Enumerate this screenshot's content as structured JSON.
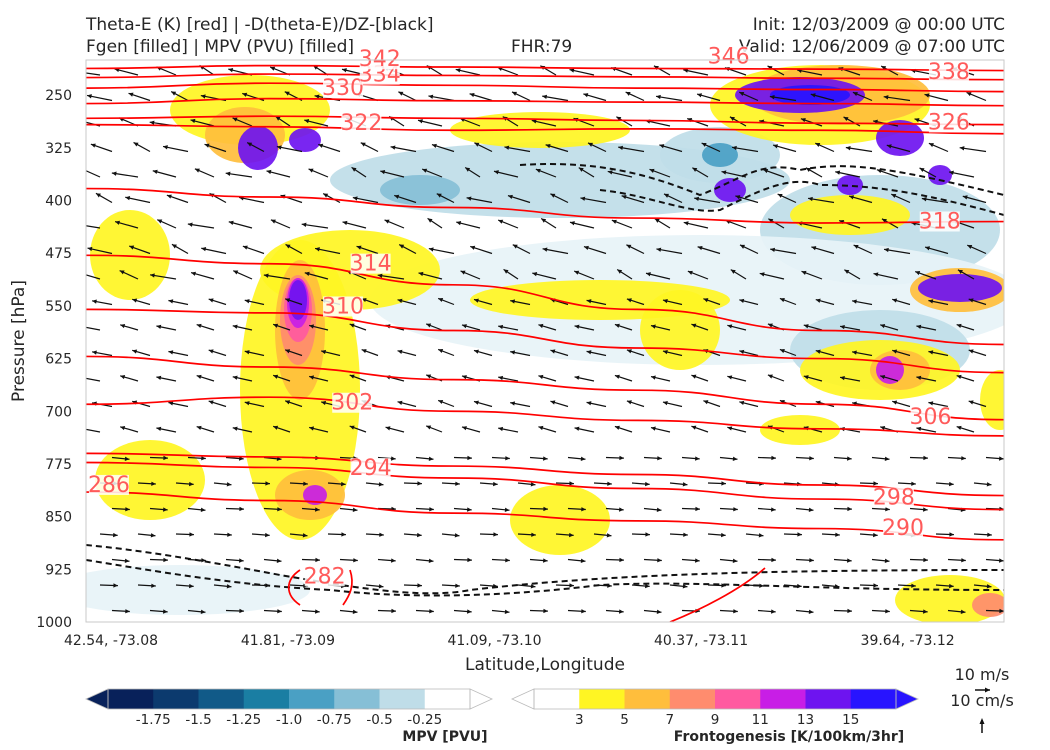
{
  "header": {
    "title_line1": "Theta-E (K) [red] | -D(theta-E)/DZ-[black]",
    "title_line2": "Fgen [filled] | MPV (PVU) [filled]",
    "fhr": "FHR:79",
    "init": "Init: 12/03/2009 @ 00:00 UTC",
    "valid": "Valid: 12/06/2009 @ 07:00 UTC"
  },
  "chart_data": {
    "type": "cross-section",
    "ylabel": "Pressure [hPa]",
    "xlabel": "Latitude,Longitude",
    "y_scale": "pressure, inverted",
    "ylim": [
      1000,
      200
    ],
    "y_ticks": [
      250,
      325,
      400,
      475,
      550,
      625,
      700,
      775,
      850,
      925,
      1000
    ],
    "x_ticks": [
      "42.54, -73.08",
      "41.81, -73.09",
      "41.09, -73.10",
      "40.37, -73.11",
      "39.64, -73.12"
    ],
    "theta_e_color": "#ff0000",
    "theta_e_contours": [
      {
        "value": 282,
        "label": "282",
        "label_pos": [
          0.26,
          942
        ]
      },
      {
        "value": 286,
        "label": "286",
        "label_pos": [
          0.025,
          812
        ]
      },
      {
        "value": 290,
        "label": "290",
        "label_pos": [
          0.89,
          873
        ],
        "points": [
          [
            0,
            815
          ],
          [
            0.2,
            827
          ],
          [
            0.4,
            845
          ],
          [
            0.6,
            856
          ],
          [
            0.8,
            867
          ],
          [
            1.0,
            883
          ]
        ]
      },
      {
        "value": 294,
        "label": "294",
        "label_pos": [
          0.31,
          788
        ],
        "points": [
          [
            0,
            773
          ],
          [
            0.2,
            780
          ],
          [
            0.4,
            795
          ],
          [
            0.6,
            810
          ],
          [
            0.8,
            825
          ],
          [
            1.0,
            840
          ]
        ]
      },
      {
        "value": 298,
        "label": "298",
        "label_pos": [
          0.88,
          830
        ],
        "points": [
          [
            0,
            760
          ],
          [
            0.2,
            765
          ],
          [
            0.4,
            778
          ],
          [
            0.6,
            790
          ],
          [
            0.8,
            805
          ],
          [
            1.0,
            820
          ]
        ]
      },
      {
        "value": 302,
        "label": "302",
        "label_pos": [
          0.29,
          695
        ],
        "points": [
          [
            0,
            690
          ],
          [
            0.2,
            680
          ],
          [
            0.4,
            700
          ],
          [
            0.6,
            713
          ],
          [
            0.8,
            725
          ],
          [
            1.0,
            735
          ]
        ]
      },
      {
        "value": 306,
        "label": "306",
        "label_pos": [
          0.92,
          715
        ],
        "points": [
          [
            0,
            622
          ],
          [
            0.2,
            637
          ],
          [
            0.4,
            655
          ],
          [
            0.6,
            670
          ],
          [
            0.8,
            690
          ],
          [
            1.0,
            712
          ]
        ]
      },
      {
        "value": 310,
        "label": "310",
        "label_pos": [
          0.28,
          558
        ],
        "points": [
          [
            0,
            555
          ],
          [
            0.2,
            560
          ],
          [
            0.4,
            585
          ],
          [
            0.6,
            610
          ],
          [
            0.8,
            625
          ],
          [
            1.0,
            645
          ]
        ]
      },
      {
        "value": 314,
        "label": "314",
        "label_pos": [
          0.31,
          497
        ],
        "points": [
          [
            0,
            478
          ],
          [
            0.2,
            490
          ],
          [
            0.4,
            520
          ],
          [
            0.6,
            555
          ],
          [
            0.8,
            585
          ],
          [
            1.0,
            605
          ]
        ]
      },
      {
        "value": 318,
        "label": "318",
        "label_pos": [
          0.93,
          437
        ],
        "points": [
          [
            0,
            383
          ],
          [
            0.2,
            395
          ],
          [
            0.4,
            410
          ],
          [
            0.6,
            425
          ],
          [
            0.8,
            432
          ],
          [
            1.0,
            430
          ]
        ]
      },
      {
        "value": 322,
        "label": "322",
        "label_pos": [
          0.3,
          297
        ],
        "points": [
          [
            0,
            292
          ],
          [
            0.2,
            295
          ],
          [
            0.4,
            300
          ],
          [
            0.6,
            298
          ],
          [
            0.8,
            300
          ],
          [
            1.0,
            305
          ]
        ]
      },
      {
        "value": 326,
        "label": "326",
        "label_pos": [
          0.94,
          296
        ],
        "points": [
          [
            0,
            283
          ],
          [
            0.2,
            280
          ],
          [
            0.4,
            283
          ],
          [
            0.6,
            286
          ],
          [
            0.8,
            290
          ],
          [
            1.0,
            292
          ]
        ]
      },
      {
        "value": 330,
        "label": "330",
        "label_pos": [
          0.28,
          247
        ],
        "points": [
          [
            0,
            262
          ],
          [
            0.2,
            255
          ],
          [
            0.4,
            258
          ],
          [
            0.6,
            260
          ],
          [
            0.8,
            262
          ],
          [
            1.0,
            265
          ]
        ]
      },
      {
        "value": 334,
        "label": "334",
        "label_pos": [
          0.32,
          228
        ],
        "points": [
          [
            0,
            240
          ],
          [
            0.2,
            233
          ],
          [
            0.4,
            236
          ],
          [
            0.6,
            240
          ],
          [
            0.8,
            242
          ],
          [
            1.0,
            245
          ]
        ]
      },
      {
        "value": 338,
        "label": "338",
        "label_pos": [
          0.94,
          224
        ],
        "points": [
          [
            0,
            225
          ],
          [
            0.2,
            220
          ],
          [
            0.4,
            222
          ],
          [
            0.6,
            224
          ],
          [
            0.8,
            226
          ],
          [
            1.0,
            228
          ]
        ]
      },
      {
        "value": 342,
        "label": "342",
        "label_pos": [
          0.32,
          206
        ],
        "points": [
          [
            0,
            212
          ],
          [
            0.2,
            208
          ],
          [
            0.4,
            210
          ],
          [
            0.6,
            212
          ],
          [
            0.8,
            213
          ],
          [
            1.0,
            215
          ]
        ]
      },
      {
        "value": 346,
        "label": "346",
        "label_pos": [
          0.7,
          202
        ]
      }
    ],
    "mpv_colorbar": {
      "title": "MPV [PVU]",
      "ticks": [
        "-1.75",
        "-1.5",
        "-1.25",
        "-1.0",
        "-0.75",
        "-0.5",
        "-0.25"
      ],
      "colors": [
        "#08215a",
        "#0c3a6e",
        "#115a88",
        "#1a7ea3",
        "#4aa0c4",
        "#86bfd6",
        "#bfdde8",
        "#ffffff"
      ]
    },
    "fgen_colorbar": {
      "title": "Frontogenesis [K/100km/3hr]",
      "ticks": [
        "3",
        "5",
        "7",
        "9",
        "11",
        "13",
        "15"
      ],
      "colors": [
        "#ffffff",
        "#fff523",
        "#ffbe3c",
        "#ff8c6e",
        "#ff5aa0",
        "#c81ee6",
        "#6e14f0",
        "#2814ff"
      ]
    },
    "wind_reference": {
      "horizontal": "10 m/s",
      "vertical": "10 cm/s"
    }
  }
}
